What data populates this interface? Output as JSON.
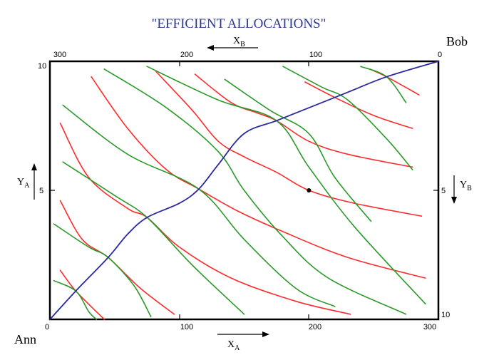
{
  "title": "\"EFFICIENT ALLOCATIONS\"",
  "corners": {
    "bottom_left": "Ann",
    "top_right": "Bob"
  },
  "axes": {
    "x_a": {
      "main": "X",
      "sub": "A",
      "ticks": [
        "0",
        "100",
        "200",
        "300"
      ]
    },
    "x_b": {
      "main": "X",
      "sub": "B",
      "ticks": [
        "300",
        "200",
        "100",
        "0"
      ]
    },
    "y_a": {
      "main": "Y",
      "sub": "A",
      "ticks": [
        "10",
        "5"
      ]
    },
    "y_b": {
      "main": "Y",
      "sub": "B",
      "ticks": [
        "5",
        "10"
      ]
    }
  },
  "colors": {
    "title": "#2b3a8f",
    "ann_indifference": "#ff2a2a",
    "bob_indifference": "#2a9a2a",
    "contract_curve": "#2a2aa0",
    "frame": "#000000"
  },
  "chart_data": {
    "type": "edgeworth-box",
    "x_range": [
      0,
      300
    ],
    "y_range": [
      0,
      10
    ],
    "marked_point": [
      200,
      5
    ],
    "contract_curve": [
      [
        0,
        0
      ],
      [
        20,
        1.1
      ],
      [
        45,
        2.4
      ],
      [
        60,
        3.3
      ],
      [
        75,
        3.95
      ],
      [
        100,
        4.5
      ],
      [
        115,
        5.05
      ],
      [
        130,
        6.0
      ],
      [
        150,
        7.2
      ],
      [
        175,
        7.7
      ],
      [
        200,
        8.2
      ],
      [
        230,
        8.8
      ],
      [
        260,
        9.4
      ],
      [
        300,
        10
      ]
    ],
    "ann_curves": [
      [
        [
          8,
          1.9
        ],
        [
          20,
          1.1
        ],
        [
          42,
          0
        ]
      ],
      [
        [
          8,
          4.6
        ],
        [
          25,
          3.1
        ],
        [
          45,
          2.4
        ],
        [
          70,
          1.2
        ],
        [
          96,
          0.2
        ]
      ],
      [
        [
          8,
          7.6
        ],
        [
          30,
          5.5
        ],
        [
          60,
          4.3
        ],
        [
          75,
          3.95
        ],
        [
          100,
          2.8
        ],
        [
          140,
          1.6
        ],
        [
          190,
          0.7
        ],
        [
          232,
          0.2
        ]
      ],
      [
        [
          32,
          9.4
        ],
        [
          60,
          7.4
        ],
        [
          90,
          5.8
        ],
        [
          115,
          5.05
        ],
        [
          145,
          4.2
        ],
        [
          180,
          3.4
        ],
        [
          230,
          2.4
        ],
        [
          290,
          1.6
        ]
      ],
      [
        [
          82,
          9.6
        ],
        [
          110,
          8.1
        ],
        [
          130,
          6.9
        ],
        [
          150,
          6.3
        ],
        [
          175,
          5.7
        ],
        [
          200,
          5.0
        ],
        [
          235,
          4.5
        ],
        [
          287,
          4.0
        ]
      ],
      [
        [
          112,
          9.5
        ],
        [
          140,
          8.4
        ],
        [
          160,
          8.0
        ],
        [
          175,
          7.7
        ],
        [
          200,
          6.9
        ],
        [
          230,
          6.4
        ],
        [
          280,
          5.9
        ]
      ],
      [
        [
          197,
          9.2
        ],
        [
          220,
          8.6
        ],
        [
          250,
          7.9
        ],
        [
          280,
          7.4
        ]
      ],
      [
        [
          247,
          9.7
        ],
        [
          260,
          9.4
        ],
        [
          285,
          8.7
        ]
      ]
    ],
    "bob_curves": [
      [
        [
          3,
          1.5
        ],
        [
          20,
          1.1
        ],
        [
          30,
          0.3
        ],
        [
          36,
          0
        ]
      ],
      [
        [
          3,
          3.7
        ],
        [
          30,
          2.8
        ],
        [
          45,
          2.4
        ],
        [
          65,
          1.3
        ],
        [
          78,
          0.1
        ]
      ],
      [
        [
          10,
          6.1
        ],
        [
          50,
          4.8
        ],
        [
          75,
          3.95
        ],
        [
          110,
          2.1
        ],
        [
          150,
          0.2
        ]
      ],
      [
        [
          10,
          8.3
        ],
        [
          60,
          6.4
        ],
        [
          115,
          5.05
        ],
        [
          150,
          3.1
        ],
        [
          190,
          1.2
        ],
        [
          220,
          0.5
        ]
      ],
      [
        [
          42,
          9.7
        ],
        [
          90,
          8.2
        ],
        [
          130,
          6.5
        ],
        [
          150,
          5.0
        ],
        [
          180,
          3.2
        ],
        [
          215,
          1.6
        ],
        [
          275,
          0.2
        ]
      ],
      [
        [
          75,
          9.8
        ],
        [
          130,
          8.5
        ],
        [
          175,
          7.7
        ],
        [
          200,
          5.9
        ],
        [
          235,
          3.6
        ],
        [
          290,
          0.6
        ]
      ],
      [
        [
          135,
          9.3
        ],
        [
          170,
          8.1
        ],
        [
          200,
          7.2
        ],
        [
          220,
          5.5
        ],
        [
          248,
          3.8
        ]
      ],
      [
        [
          180,
          9.8
        ],
        [
          210,
          9.0
        ],
        [
          230,
          8.5
        ],
        [
          260,
          7.0
        ],
        [
          280,
          5.8
        ]
      ],
      [
        [
          240,
          9.8
        ],
        [
          260,
          9.4
        ],
        [
          275,
          8.4
        ]
      ]
    ]
  }
}
